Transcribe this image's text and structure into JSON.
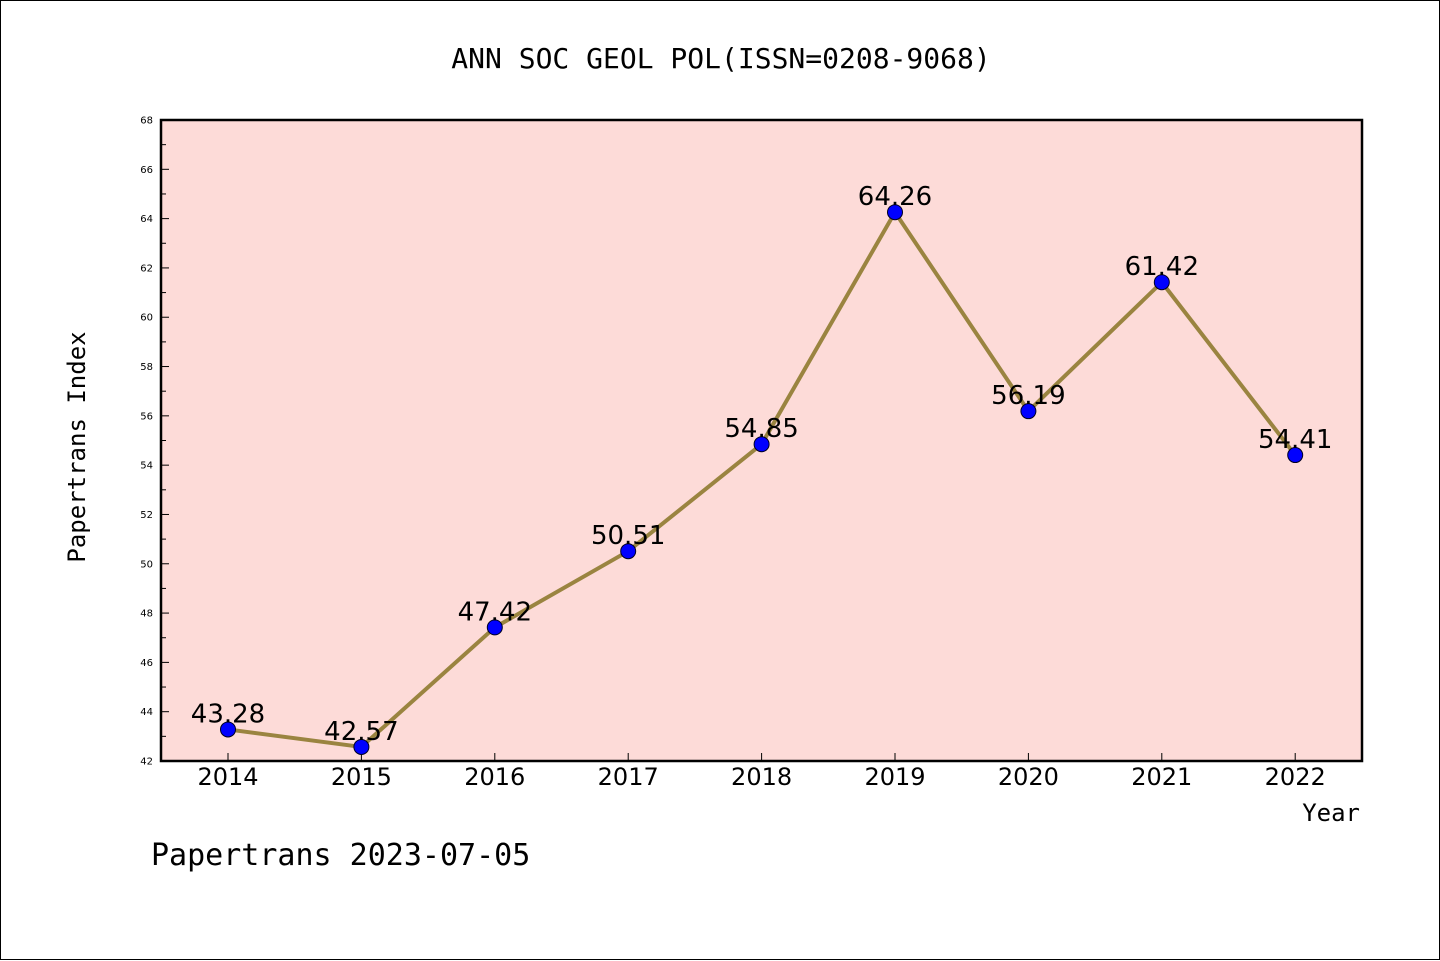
{
  "chart_data": {
    "type": "line",
    "title": "ANN SOC GEOL POL(ISSN=0208-9068)",
    "xlabel": "Year",
    "ylabel": "Papertrans Index",
    "x": [
      "2014",
      "2015",
      "2016",
      "2017",
      "2018",
      "2019",
      "2020",
      "2021",
      "2022"
    ],
    "series": [
      {
        "values": [
          43.28,
          42.57,
          47.42,
          50.51,
          54.85,
          64.26,
          56.19,
          61.42,
          54.41
        ]
      }
    ],
    "data_labels": [
      "43.28",
      "42.57",
      "47.42",
      "50.51",
      "54.85",
      "64.26",
      "56.19",
      "61.42",
      "54.41"
    ],
    "ylim": [
      42,
      68
    ],
    "yticks": [
      "42",
      "44",
      "46",
      "48",
      "50",
      "52",
      "54",
      "56",
      "58",
      "60",
      "62",
      "64",
      "66",
      "68"
    ],
    "grid": false,
    "legend": "none",
    "colors": {
      "plot_bg": "#fddbd8",
      "line": "#9a8440",
      "marker": "#0000ff"
    }
  },
  "footer": "Papertrans 2023-07-05"
}
